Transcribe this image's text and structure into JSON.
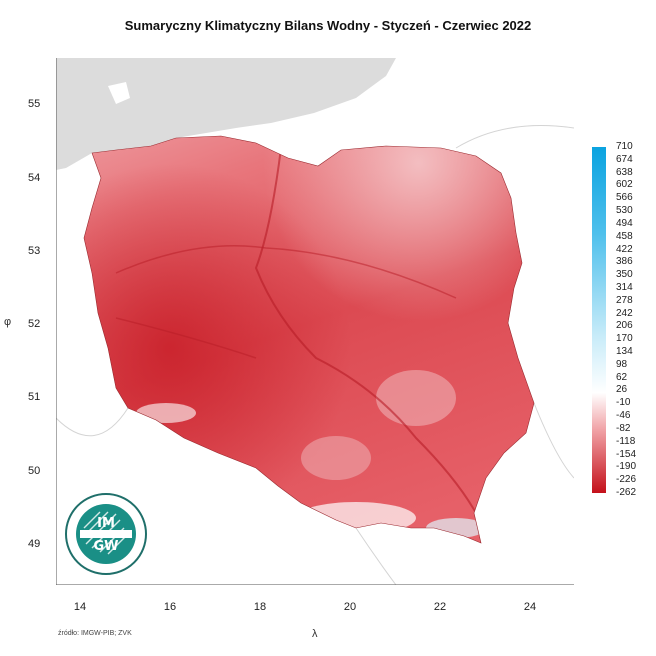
{
  "title": "Sumaryczny Klimatyczny Bilans Wodny - Styczeń - Czerwiec 2022",
  "x_axis": {
    "label": "λ",
    "ticks": [
      "14",
      "16",
      "18",
      "20",
      "22",
      "24"
    ]
  },
  "y_axis": {
    "label": "φ",
    "ticks": [
      "55",
      "54",
      "53",
      "52",
      "51",
      "50",
      "49"
    ]
  },
  "legend": {
    "labels": [
      "710",
      "674",
      "638",
      "602",
      "566",
      "530",
      "494",
      "458",
      "422",
      "386",
      "350",
      "314",
      "278",
      "242",
      "206",
      "170",
      "134",
      "98",
      "62",
      "26",
      "-10",
      "-46",
      "-82",
      "-118",
      "-154",
      "-190",
      "-226",
      "-262"
    ],
    "colors": {
      "high": "#1aa7e0",
      "mid": "#ffffff",
      "low": "#c8101a"
    }
  },
  "logo": {
    "text": "IMGW"
  },
  "source": "źródło: IMGW-PIB; ZVK",
  "colors": {
    "land_outside": "#dcdcdc",
    "country_fill": "#e0535a"
  }
}
